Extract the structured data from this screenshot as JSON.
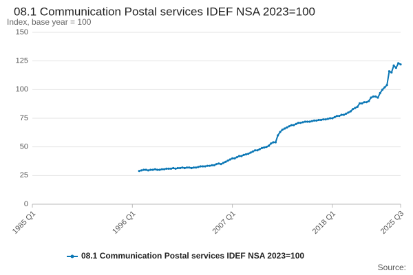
{
  "chart_data": {
    "type": "line",
    "title": "08.1 Communication Postal services IDEF NSA 2023=100",
    "subtitle": "Index, base year = 100",
    "source": "Source:",
    "categories": [
      "1985 Q1",
      null,
      null,
      null,
      null,
      null,
      null,
      null,
      null,
      null,
      null,
      null,
      null,
      null,
      null,
      null,
      null,
      null,
      null,
      null,
      null,
      null,
      null,
      null,
      null,
      null,
      null,
      null,
      null,
      null,
      null,
      null,
      null,
      null,
      null,
      null,
      null,
      null,
      null,
      null,
      null,
      null,
      null,
      null,
      "1996 Q1",
      null,
      null,
      null,
      null,
      null,
      null,
      null,
      null,
      null,
      null,
      null,
      null,
      null,
      null,
      null,
      null,
      null,
      null,
      null,
      null,
      null,
      null,
      null,
      null,
      null,
      null,
      null,
      null,
      null,
      null,
      null,
      null,
      null,
      null,
      null,
      null,
      null,
      null,
      null,
      null,
      null,
      null,
      null,
      "2007 Q1",
      null,
      null,
      null,
      null,
      null,
      null,
      null,
      null,
      null,
      null,
      null,
      null,
      null,
      null,
      null,
      null,
      null,
      null,
      null,
      null,
      null,
      null,
      null,
      null,
      null,
      null,
      null,
      null,
      null,
      null,
      null,
      null,
      null,
      null,
      null,
      null,
      null,
      null,
      null,
      null,
      null,
      null,
      null,
      "2018 Q1",
      null,
      null,
      null,
      null,
      null,
      null,
      null,
      null,
      null,
      null,
      null,
      null,
      null,
      null,
      null,
      null,
      null,
      null,
      null,
      null,
      null,
      null,
      null,
      null,
      null,
      null,
      null,
      null,
      null,
      "2025 Q3"
    ],
    "series": [
      {
        "name": "08.1 Communication Postal services IDEF NSA 2023=100",
        "color": "#0b77b5",
        "values": [
          null,
          null,
          null,
          null,
          null,
          null,
          null,
          null,
          null,
          null,
          null,
          null,
          null,
          null,
          null,
          null,
          null,
          null,
          null,
          null,
          null,
          null,
          null,
          null,
          null,
          null,
          null,
          null,
          null,
          null,
          null,
          null,
          null,
          null,
          null,
          null,
          null,
          null,
          null,
          null,
          null,
          null,
          null,
          null,
          null,
          null,
          null,
          29,
          29.5,
          30,
          30,
          29.5,
          30,
          30,
          30.5,
          30,
          30,
          30.5,
          30.5,
          31,
          31,
          31,
          31.5,
          31,
          31.5,
          31.5,
          32,
          31.5,
          32,
          32,
          31.5,
          32,
          32,
          32.5,
          33,
          33,
          33,
          33.5,
          33.5,
          34,
          34,
          35,
          35.5,
          35,
          36,
          37,
          38,
          39,
          40,
          40,
          41,
          42,
          42,
          43,
          43.5,
          44,
          45,
          46,
          47,
          47,
          48,
          49,
          49.5,
          50,
          51,
          53,
          54,
          54,
          60,
          63,
          65,
          66,
          67,
          68,
          69,
          69,
          70,
          71,
          71,
          71.5,
          72,
          72,
          72,
          72.5,
          73,
          73,
          73.5,
          73.5,
          74,
          74,
          74.5,
          75,
          75,
          76,
          77,
          77,
          78,
          78,
          79,
          80,
          81,
          83,
          84,
          85,
          88,
          88,
          89,
          89,
          90,
          93,
          94,
          94,
          93,
          97,
          100,
          102,
          104,
          116,
          115,
          121,
          119,
          123,
          122
        ]
      }
    ],
    "ylim": [
      0,
      150
    ],
    "yticks": [
      0,
      25,
      50,
      75,
      100,
      125,
      150
    ],
    "grid": true
  }
}
